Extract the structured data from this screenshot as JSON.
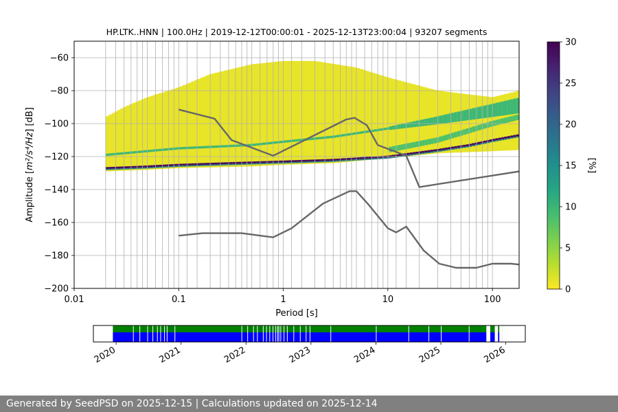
{
  "chart_data": [
    {
      "type": "heatmap",
      "title": "HP.LTK..HNN | 100.0Hz | 2019-12-12T00:00:01 - 2025-12-13T23:00:04 | 93207 segments",
      "xlabel": "Period [s]",
      "ylabel_prefix": "Amplitude [",
      "ylabel_math": "m²/s⁴/Hz",
      "ylabel_suffix": "] [dB]",
      "x_scale": "log",
      "xlim": [
        0.01,
        180
      ],
      "ylim": [
        -200,
        -50
      ],
      "x_ticks": [
        {
          "value": 0.01,
          "label": "0.01"
        },
        {
          "value": 0.1,
          "label": "0.1"
        },
        {
          "value": 1,
          "label": "1"
        },
        {
          "value": 10,
          "label": "10"
        },
        {
          "value": 100,
          "label": "100"
        }
      ],
      "y_ticks": [
        -60,
        -80,
        -100,
        -120,
        -140,
        -160,
        -180,
        -200
      ],
      "y_tick_labels": [
        "−60",
        "−80",
        "−100",
        "−120",
        "−140",
        "−160",
        "−180",
        "−200"
      ],
      "grid": true,
      "period_grid_lines": [
        0.02,
        0.025,
        0.03,
        0.035,
        0.04,
        0.045,
        0.05,
        0.06,
        0.07,
        0.08,
        0.09,
        0.1,
        0.12,
        0.15,
        0.2,
        0.25,
        0.3,
        0.35,
        0.4,
        0.45,
        0.5,
        0.6,
        0.7,
        0.8,
        0.9,
        1,
        1.2,
        1.5,
        2,
        2.5,
        3,
        3.5,
        4,
        4.5,
        5,
        6,
        7,
        8,
        9,
        10,
        12,
        15,
        20,
        30,
        40,
        50,
        60,
        70,
        80,
        90,
        100
      ],
      "density": {
        "min_period": 0.02,
        "max_period": 180,
        "envelope_upper": [
          [
            0.02,
            -96
          ],
          [
            0.03,
            -90
          ],
          [
            0.05,
            -84
          ],
          [
            0.1,
            -78
          ],
          [
            0.2,
            -70
          ],
          [
            0.5,
            -64
          ],
          [
            1,
            -62
          ],
          [
            2,
            -62
          ],
          [
            5,
            -66
          ],
          [
            10,
            -72
          ],
          [
            30,
            -80
          ],
          [
            100,
            -84
          ],
          [
            180,
            -80
          ]
        ],
        "envelope_lower": [
          [
            0.02,
            -129
          ],
          [
            0.05,
            -128
          ],
          [
            0.1,
            -127
          ],
          [
            0.5,
            -126
          ],
          [
            1,
            -125
          ],
          [
            3,
            -124
          ],
          [
            10,
            -121
          ],
          [
            30,
            -118
          ],
          [
            80,
            -117
          ],
          [
            180,
            -116
          ]
        ],
        "mode_line": [
          [
            0.02,
            -127
          ],
          [
            0.05,
            -126
          ],
          [
            0.1,
            -125
          ],
          [
            0.3,
            -124
          ],
          [
            1,
            -123
          ],
          [
            3,
            -122
          ],
          [
            10,
            -120
          ],
          [
            30,
            -116
          ],
          [
            60,
            -113
          ],
          [
            100,
            -110
          ],
          [
            180,
            -107
          ]
        ],
        "secondary_line": [
          [
            0.02,
            -119
          ],
          [
            0.1,
            -115
          ],
          [
            0.5,
            -113
          ],
          [
            1,
            -111
          ],
          [
            3,
            -108
          ],
          [
            10,
            -103
          ],
          [
            30,
            -98
          ],
          [
            100,
            -92
          ],
          [
            180,
            -89
          ]
        ],
        "upper_band": [
          [
            10,
            -116
          ],
          [
            30,
            -110
          ],
          [
            100,
            -100
          ],
          [
            180,
            -96
          ]
        ]
      },
      "series": [
        {
          "name": "",
          "color": "#666666",
          "x": [
            0.1,
            0.22,
            0.32,
            0.8,
            4,
            4.8,
            6.3,
            8,
            15,
            20,
            180
          ],
          "y": [
            -91.5,
            -97,
            -110,
            -119.5,
            -97.5,
            -96.5,
            -101,
            -113,
            -119.5,
            -138.5,
            -129
          ]
        },
        {
          "name": "",
          "color": "#666666",
          "x": [
            0.1,
            0.17,
            0.4,
            0.8,
            1.2,
            2.4,
            4.3,
            5,
            6.5,
            10,
            12,
            15,
            22,
            31,
            45,
            70,
            100,
            150,
            180
          ],
          "y": [
            -168,
            -166.5,
            -166.5,
            -169,
            -163.5,
            -148.5,
            -141,
            -141,
            -149,
            -163.5,
            -166,
            -162.5,
            -177,
            -185,
            -187.5,
            -187.5,
            -185,
            -185,
            -185.5
          ]
        }
      ],
      "colorbar": {
        "label": "[%]",
        "min": 0,
        "max": 30,
        "ticks": [
          0,
          5,
          10,
          15,
          20,
          25,
          30
        ],
        "colormap": "viridis_r"
      }
    },
    {
      "type": "timeline",
      "xlim": [
        2019.65,
        2026.3
      ],
      "x_ticks": [
        "2020",
        "2021",
        "2022",
        "2023",
        "2024",
        "2025",
        "2026"
      ],
      "x_tick_values": [
        2020.0,
        2021.0,
        2022.0,
        2023.0,
        2024.0,
        2025.0,
        2026.0
      ],
      "data_start": 2019.95,
      "data_end": 2025.95,
      "colors": {
        "available": "#008000",
        "used": "#0000ff",
        "empty": "#ffffff"
      },
      "gaps": [
        [
          2025.7,
          2025.76
        ],
        [
          2025.83,
          2025.88
        ],
        [
          2025.9,
          2025.95
        ]
      ],
      "blue_gap_ticks": [
        2020.26,
        2020.36,
        2020.48,
        2020.56,
        2020.63,
        2020.68,
        2020.74,
        2020.78,
        2020.9,
        2021.93,
        2022.02,
        2022.11,
        2022.17,
        2022.26,
        2022.31,
        2022.36,
        2022.41,
        2022.45,
        2022.48,
        2022.5,
        2022.53,
        2022.58,
        2022.63,
        2022.73,
        2022.83,
        2022.92,
        2022.98,
        2023.3,
        2024.0,
        2024.5,
        2024.81,
        2025.0,
        2025.43
      ]
    }
  ],
  "footer": {
    "text": "Generated by SeedPSD on 2025-12-15 | Calculations updated on 2025-12-14"
  }
}
